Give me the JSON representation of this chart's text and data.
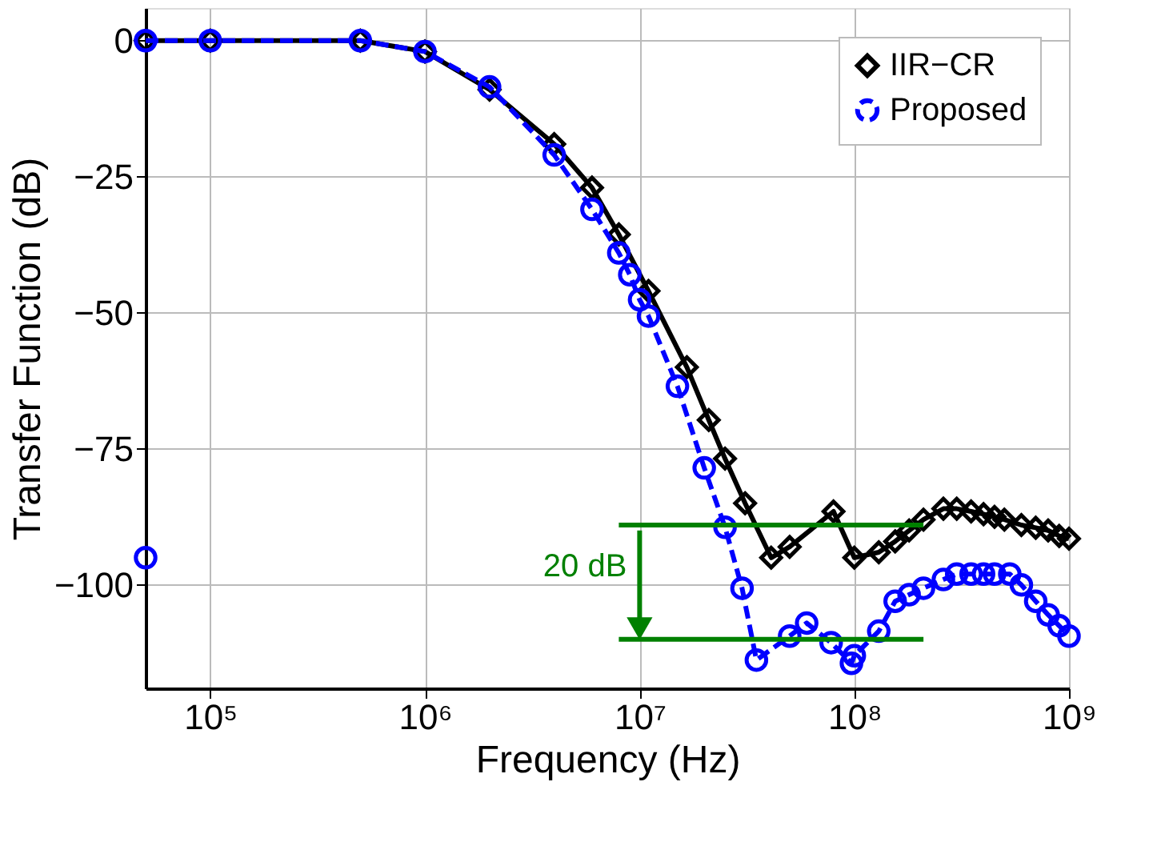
{
  "chart_data": {
    "type": "line",
    "xlabel": "Frequency (Hz)",
    "ylabel": "Transfer Function (dB)",
    "log": "x",
    "grid": true,
    "legend": "top right",
    "xlim": [
      50000,
      1000000000
    ],
    "ylim": [
      -119,
      6
    ],
    "xticks": [
      {
        "value": 100000,
        "label": "10⁵"
      },
      {
        "value": 1000000,
        "label": "10⁶"
      },
      {
        "value": 10000000,
        "label": "10⁷"
      },
      {
        "value": 100000000,
        "label": "10⁸"
      },
      {
        "value": 1000000000,
        "label": "10⁹"
      }
    ],
    "yticks": [
      0,
      -25,
      -50,
      -75,
      -100
    ],
    "annotations": [
      "20 dB"
    ],
    "series": [
      {
        "name": "IIR−CR",
        "color": "#000000",
        "marker": "diamond",
        "line_style": "solid",
        "x": [
          50000,
          100000,
          500000,
          1000000,
          2000000,
          4000000,
          6000000,
          8000000,
          11000000,
          16600000,
          21000000,
          25000000,
          31000000,
          41000000,
          50000000,
          80000000,
          100000000,
          130000000,
          155000000,
          180000000,
          210000000,
          260000000,
          300000000,
          350000000,
          400000000,
          450000000,
          500000000,
          600000000,
          700000000,
          800000000,
          900000000,
          1000000000
        ],
        "values": [
          0,
          0,
          0,
          -2,
          -9,
          -19,
          -27,
          -35.6,
          -46,
          -60,
          -69.7,
          -76.8,
          -85,
          -95,
          -93,
          -86.5,
          -95,
          -94,
          -92,
          -90,
          -88,
          -86,
          -86,
          -86.5,
          -87,
          -87.5,
          -88,
          -89,
          -89.5,
          -90,
          -91,
          -91.5
        ]
      },
      {
        "name": "Proposed",
        "color": "#0000ff",
        "marker": "circle",
        "line_style": "dashed",
        "x": [
          50000,
          100000,
          500000,
          1000000,
          2000000,
          4000000,
          6000000,
          8000000,
          9000000,
          10000000,
          11000000,
          15000000,
          20000000,
          25000000,
          30000000,
          35000000,
          50000000,
          60000000,
          78000000,
          97000000,
          100000000,
          130000000,
          155000000,
          180000000,
          210000000,
          260000000,
          300000000,
          350000000,
          400000000,
          450000000,
          530000000,
          600000000,
          700000000,
          800000000,
          900000000,
          1000000000
        ],
        "values": [
          0,
          0,
          0,
          -2,
          -8.5,
          -21,
          -31,
          -39,
          -43,
          -47.6,
          -50.6,
          -63.5,
          -78.5,
          -89.4,
          -100.6,
          -113.8,
          -109.4,
          -107,
          -110.6,
          -114.4,
          -113,
          -108.5,
          -103,
          -101.8,
          -100.6,
          -99,
          -98,
          -98,
          -98,
          -98,
          -98,
          -100,
          -103,
          -105.5,
          -107.5,
          -109.4
        ]
      },
      {
        "type": "scatter",
        "color": "#0000ff",
        "marker": "circle",
        "x": [
          50000
        ],
        "values": [
          -95
        ]
      },
      {
        "color": "#008000",
        "line_style": "solid",
        "x": [
          8000000,
          210000000
        ],
        "values": [
          -89,
          -89
        ]
      },
      {
        "color": "#008000",
        "line_style": "solid",
        "x": [
          8000000,
          210000000
        ],
        "values": [
          -110,
          -110
        ]
      },
      {
        "color": "#008000",
        "line_style": "solid",
        "marker": "triangle",
        "x": [
          10000000,
          10000000
        ],
        "values": [
          -90,
          -108
        ]
      }
    ]
  }
}
